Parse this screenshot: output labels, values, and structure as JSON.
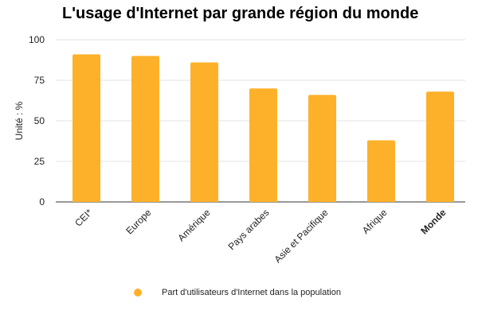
{
  "chart_data": {
    "type": "bar",
    "title": "L'usage d'Internet par grande région du monde",
    "xlabel": "",
    "ylabel": "Unité : %",
    "ylim": [
      0,
      100
    ],
    "yticks": [
      0,
      25,
      50,
      75,
      100
    ],
    "grid": true,
    "categories": [
      "CEI*",
      "Europe",
      "Amérique",
      "Pays arabes",
      "Asie et Pacifique",
      "Afrique",
      "Monde"
    ],
    "bold_categories": [
      "Monde"
    ],
    "series": [
      {
        "name": "Part d'utilisateurs d'Internet dans la population",
        "values": [
          91,
          90,
          86,
          70,
          66,
          38,
          68
        ],
        "color": "#FDB12A"
      }
    ],
    "legend_position": "bottom"
  }
}
